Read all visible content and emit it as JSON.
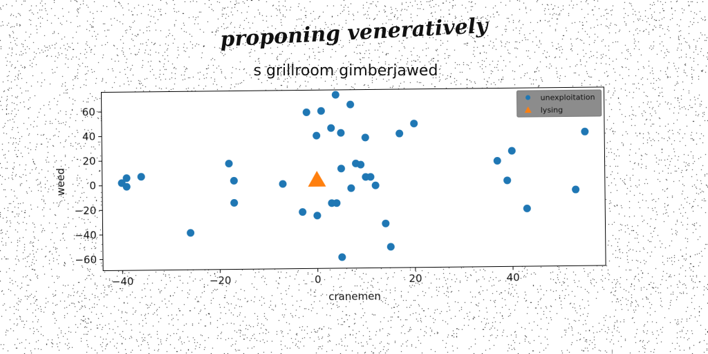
{
  "super_title": "proponing veneratively",
  "chart_data": {
    "type": "scatter",
    "title": "s grillroom gimberjawed",
    "xlabel": "cranemen",
    "ylabel": "weed",
    "xlim": [
      -44,
      59
    ],
    "ylim": [
      -69,
      76
    ],
    "x_ticks": [
      -40,
      -20,
      0,
      20,
      40
    ],
    "y_ticks": [
      -60,
      -40,
      -20,
      0,
      20,
      40,
      60
    ],
    "x_tick_labels": [
      "−40",
      "−20",
      "0",
      "20",
      "40"
    ],
    "y_tick_labels": [
      "−60",
      "−40",
      "−20",
      "0",
      "20",
      "40",
      "60"
    ],
    "grid": false,
    "legend_position": "top-right",
    "series": [
      {
        "name": "unexploitation",
        "marker": "circle",
        "color": "#1f77b4",
        "points": [
          [
            -40,
            2
          ],
          [
            -39,
            6
          ],
          [
            -39,
            -1
          ],
          [
            -36,
            7
          ],
          [
            -26,
            -39
          ],
          [
            -18,
            17
          ],
          [
            -17,
            3
          ],
          [
            -17,
            -15
          ],
          [
            -7,
            0
          ],
          [
            -3,
            -23
          ],
          [
            -2,
            58
          ],
          [
            0,
            39
          ],
          [
            0,
            -26
          ],
          [
            1,
            59
          ],
          [
            3,
            45
          ],
          [
            3,
            -16
          ],
          [
            4,
            -16
          ],
          [
            4,
            72
          ],
          [
            5,
            12
          ],
          [
            5,
            41
          ],
          [
            5,
            -60
          ],
          [
            7,
            64
          ],
          [
            7,
            -4
          ],
          [
            8,
            16
          ],
          [
            9,
            15
          ],
          [
            10,
            37
          ],
          [
            10,
            5
          ],
          [
            11,
            5
          ],
          [
            12,
            -2
          ],
          [
            14,
            -33
          ],
          [
            15,
            -52
          ],
          [
            17,
            40
          ],
          [
            20,
            48
          ],
          [
            37,
            17
          ],
          [
            39,
            1
          ],
          [
            40,
            25
          ],
          [
            43,
            -22
          ],
          [
            53,
            -7
          ],
          [
            55,
            40
          ]
        ]
      },
      {
        "name": "lysing",
        "marker": "triangle",
        "color": "#ff7f0e",
        "points": [
          [
            0,
            3
          ]
        ]
      }
    ]
  }
}
